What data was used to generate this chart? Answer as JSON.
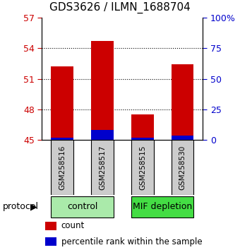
{
  "title": "GDS3626 / ILMN_1688704",
  "samples": [
    "GSM258516",
    "GSM258517",
    "GSM258515",
    "GSM258530"
  ],
  "groups": [
    {
      "name": "control",
      "indices": [
        0,
        1
      ],
      "color": "#aaeaaa"
    },
    {
      "name": "MIF depletion",
      "indices": [
        2,
        3
      ],
      "color": "#44dd44"
    }
  ],
  "red_values": [
    52.2,
    54.7,
    47.5,
    52.4
  ],
  "blue_values": [
    0.25,
    1.0,
    0.22,
    0.4
  ],
  "bar_base": 45.0,
  "ylim_left": [
    45,
    57
  ],
  "ylim_right": [
    0,
    100
  ],
  "yticks_left": [
    45,
    48,
    51,
    54,
    57
  ],
  "yticks_right": [
    0,
    25,
    50,
    75,
    100
  ],
  "ytick_labels_right": [
    "0",
    "25",
    "50",
    "75",
    "100%"
  ],
  "left_tick_color": "#cc0000",
  "right_tick_color": "#0000cc",
  "bar_width": 0.55,
  "red_color": "#cc0000",
  "blue_color": "#0000cc",
  "background_sample_box": "#cccccc",
  "protocol_label": "protocol",
  "legend_count": "count",
  "legend_percentile": "percentile rank within the sample"
}
